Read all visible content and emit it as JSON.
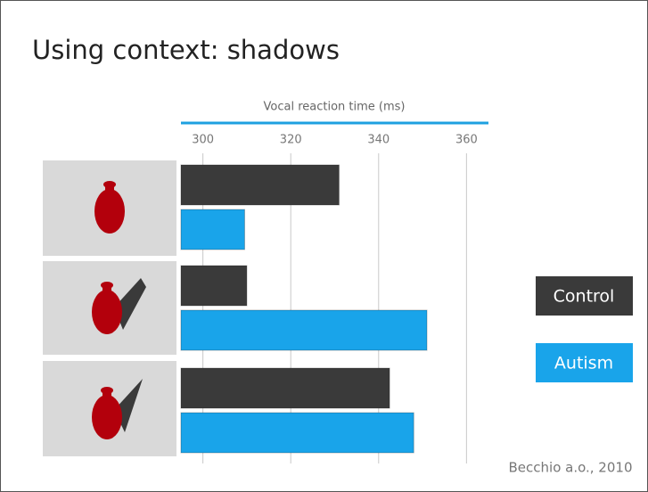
{
  "chart_data": {
    "type": "bar",
    "orientation": "horizontal",
    "title": "Using context: shadows",
    "x_label": "Vocal reaction time (ms)",
    "source": "Becchio a.o., 2010",
    "categories": [
      null,
      null,
      null
    ],
    "series": [
      {
        "name": "Control",
        "color": "#3a3a3a",
        "values": [
          331,
          310,
          342.5
        ]
      },
      {
        "name": "Autism",
        "color": "#19a4ea",
        "values": [
          309.5,
          351,
          348
        ]
      }
    ],
    "xlim": [
      295,
      365
    ],
    "xticks": [
      300,
      320,
      340,
      360
    ],
    "grid": true,
    "legend": "right"
  }
}
